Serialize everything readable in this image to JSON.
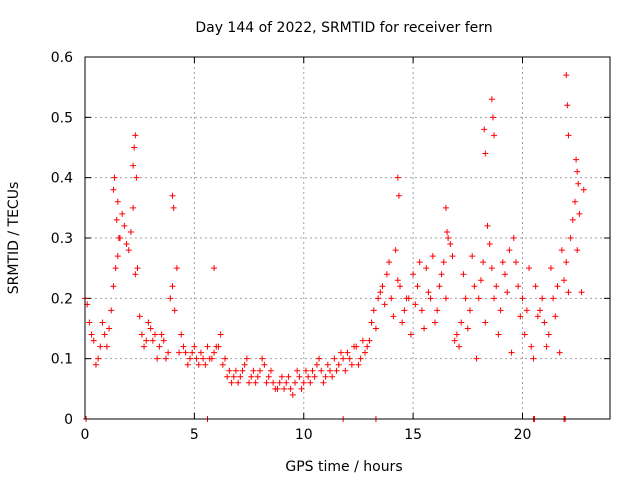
{
  "chart_data": {
    "type": "scatter",
    "title": "Day 144 of 2022, SRMTID for receiver fern",
    "xlabel": "GPS time / hours",
    "ylabel": "SRMTID / TECUs",
    "xlim": [
      0,
      24
    ],
    "ylim": [
      0,
      0.6
    ],
    "xticks": [
      "0",
      "5",
      "10",
      "15",
      "20"
    ],
    "yticks": [
      "0",
      "0.1",
      "0.2",
      "0.3",
      "0.4",
      "0.5",
      "0.6"
    ],
    "grid": true,
    "marker": "+",
    "color": "#ff0000",
    "series": [
      {
        "name": "SRMTID",
        "x": [
          0.0,
          0.2,
          0.4,
          0.6,
          0.8,
          1.0,
          1.2,
          1.4,
          1.6,
          1.8,
          2.0,
          2.2,
          2.4,
          2.6,
          2.8,
          3.0,
          3.2,
          3.4,
          3.6,
          3.8,
          4.0,
          4.2,
          4.4,
          4.6,
          4.8,
          5.0,
          5.2,
          5.4,
          5.6,
          5.8,
          6.0,
          6.2,
          6.4,
          6.6,
          6.8,
          7.0,
          7.2,
          7.4,
          7.6,
          7.8,
          8.0,
          8.2,
          8.4,
          8.6,
          8.8,
          9.0,
          9.2,
          9.4,
          9.6,
          9.8,
          10.0,
          10.2,
          10.4,
          10.6,
          10.8,
          11.0,
          11.2,
          11.4,
          11.6,
          11.8,
          12.0,
          12.2,
          12.4,
          12.6,
          12.8,
          13.0,
          13.2,
          13.4,
          13.6,
          13.8,
          14.0,
          14.2,
          14.4,
          14.6,
          14.8,
          15.0,
          15.2,
          15.4,
          15.6,
          15.8,
          16.0,
          16.2,
          16.4,
          16.6,
          16.8,
          17.0,
          17.2,
          17.4,
          17.6,
          17.8,
          18.0,
          18.2,
          18.4,
          18.6,
          18.8,
          19.0,
          19.2,
          19.4,
          19.6,
          19.8,
          20.0,
          20.2,
          20.4,
          20.6,
          20.8,
          21.0,
          21.2,
          21.4,
          21.6,
          21.8,
          22.0,
          22.2,
          22.4,
          22.6,
          22.8,
          0.1,
          0.3,
          0.5,
          0.7,
          0.9,
          1.1,
          1.3,
          1.5,
          1.7,
          1.9,
          2.1,
          2.3,
          2.5,
          2.7,
          2.9,
          3.1,
          3.3,
          3.5,
          3.7,
          3.9,
          4.1,
          4.3,
          4.5,
          4.7,
          4.9,
          5.1,
          5.3,
          5.5,
          5.7,
          5.9,
          6.1,
          6.3,
          6.5,
          6.7,
          6.9,
          7.1,
          7.3,
          7.5,
          7.7,
          7.9,
          8.1,
          8.3,
          8.5,
          8.7,
          8.9,
          9.1,
          9.3,
          9.5,
          9.7,
          9.9,
          10.1,
          10.3,
          10.5,
          10.7,
          10.9,
          11.1,
          11.3,
          11.5,
          11.7,
          11.9,
          12.1,
          12.3,
          12.5,
          12.7,
          12.9,
          13.1,
          13.3,
          13.5,
          13.7,
          13.9,
          14.1,
          14.3,
          14.5,
          14.7,
          14.9,
          15.1,
          15.3,
          15.5,
          15.7,
          15.9,
          16.1,
          16.3,
          16.5,
          16.7,
          16.9,
          17.1,
          17.3,
          17.5,
          17.7,
          17.9,
          18.1,
          18.3,
          18.5,
          18.7,
          18.9,
          19.1,
          19.3,
          19.5,
          19.7,
          19.9,
          20.1,
          20.3,
          20.5,
          20.7,
          20.9,
          21.1,
          21.3,
          21.5,
          21.7,
          21.9,
          22.1,
          22.3,
          22.5,
          22.7,
          1.3,
          1.35,
          1.45,
          1.5,
          1.55,
          2.2,
          2.25,
          2.3,
          2.35,
          4.0,
          4.05,
          5.9,
          14.3,
          14.35,
          16.5,
          16.55,
          18.25,
          18.3,
          18.6,
          18.65,
          18.7,
          22.0,
          22.05,
          22.1,
          22.45,
          22.5,
          22.55,
          0.05,
          5.6,
          13.3,
          11.8,
          20.5,
          20.55,
          21.9,
          21.95
        ],
        "y": [
          0.2,
          0.16,
          0.13,
          0.1,
          0.16,
          0.12,
          0.18,
          0.25,
          0.3,
          0.32,
          0.28,
          0.35,
          0.25,
          0.14,
          0.13,
          0.15,
          0.14,
          0.12,
          0.13,
          0.11,
          0.22,
          0.25,
          0.14,
          0.11,
          0.1,
          0.12,
          0.09,
          0.1,
          0.12,
          0.1,
          0.12,
          0.14,
          0.1,
          0.08,
          0.07,
          0.06,
          0.08,
          0.1,
          0.07,
          0.06,
          0.08,
          0.09,
          0.07,
          0.06,
          0.05,
          0.07,
          0.06,
          0.05,
          0.06,
          0.07,
          0.06,
          0.07,
          0.08,
          0.09,
          0.08,
          0.07,
          0.08,
          0.1,
          0.09,
          0.1,
          0.11,
          0.09,
          0.12,
          0.1,
          0.11,
          0.13,
          0.18,
          0.2,
          0.22,
          0.24,
          0.2,
          0.28,
          0.22,
          0.18,
          0.2,
          0.24,
          0.22,
          0.18,
          0.25,
          0.2,
          0.16,
          0.22,
          0.26,
          0.3,
          0.27,
          0.14,
          0.16,
          0.2,
          0.18,
          0.22,
          0.2,
          0.26,
          0.32,
          0.25,
          0.22,
          0.18,
          0.24,
          0.28,
          0.3,
          0.22,
          0.2,
          0.18,
          0.12,
          0.22,
          0.18,
          0.16,
          0.14,
          0.2,
          0.22,
          0.28,
          0.26,
          0.3,
          0.36,
          0.34,
          0.38,
          0.19,
          0.14,
          0.09,
          0.12,
          0.14,
          0.15,
          0.22,
          0.27,
          0.34,
          0.29,
          0.31,
          0.24,
          0.17,
          0.12,
          0.16,
          0.13,
          0.1,
          0.14,
          0.1,
          0.2,
          0.18,
          0.11,
          0.12,
          0.09,
          0.11,
          0.1,
          0.11,
          0.09,
          0.1,
          0.11,
          0.12,
          0.09,
          0.07,
          0.06,
          0.08,
          0.07,
          0.09,
          0.06,
          0.08,
          0.07,
          0.1,
          0.06,
          0.08,
          0.05,
          0.06,
          0.05,
          0.07,
          0.04,
          0.08,
          0.05,
          0.08,
          0.06,
          0.07,
          0.1,
          0.06,
          0.09,
          0.07,
          0.08,
          0.11,
          0.08,
          0.1,
          0.12,
          0.09,
          0.13,
          0.12,
          0.16,
          0.15,
          0.21,
          0.19,
          0.26,
          0.17,
          0.23,
          0.16,
          0.2,
          0.14,
          0.19,
          0.26,
          0.15,
          0.21,
          0.27,
          0.18,
          0.24,
          0.2,
          0.29,
          0.13,
          0.12,
          0.24,
          0.15,
          0.27,
          0.1,
          0.23,
          0.16,
          0.29,
          0.2,
          0.14,
          0.26,
          0.21,
          0.11,
          0.26,
          0.17,
          0.14,
          0.25,
          0.1,
          0.17,
          0.2,
          0.12,
          0.25,
          0.17,
          0.11,
          0.23,
          0.21,
          0.33,
          0.28,
          0.21,
          0.38,
          0.4,
          0.33,
          0.36,
          0.3,
          0.42,
          0.45,
          0.47,
          0.4,
          0.37,
          0.35,
          0.25,
          0.4,
          0.37,
          0.35,
          0.31,
          0.48,
          0.44,
          0.53,
          0.5,
          0.47,
          0.57,
          0.52,
          0.47,
          0.43,
          0.41,
          0.39,
          0,
          0,
          0,
          0,
          0,
          0,
          0,
          0
        ]
      }
    ]
  }
}
